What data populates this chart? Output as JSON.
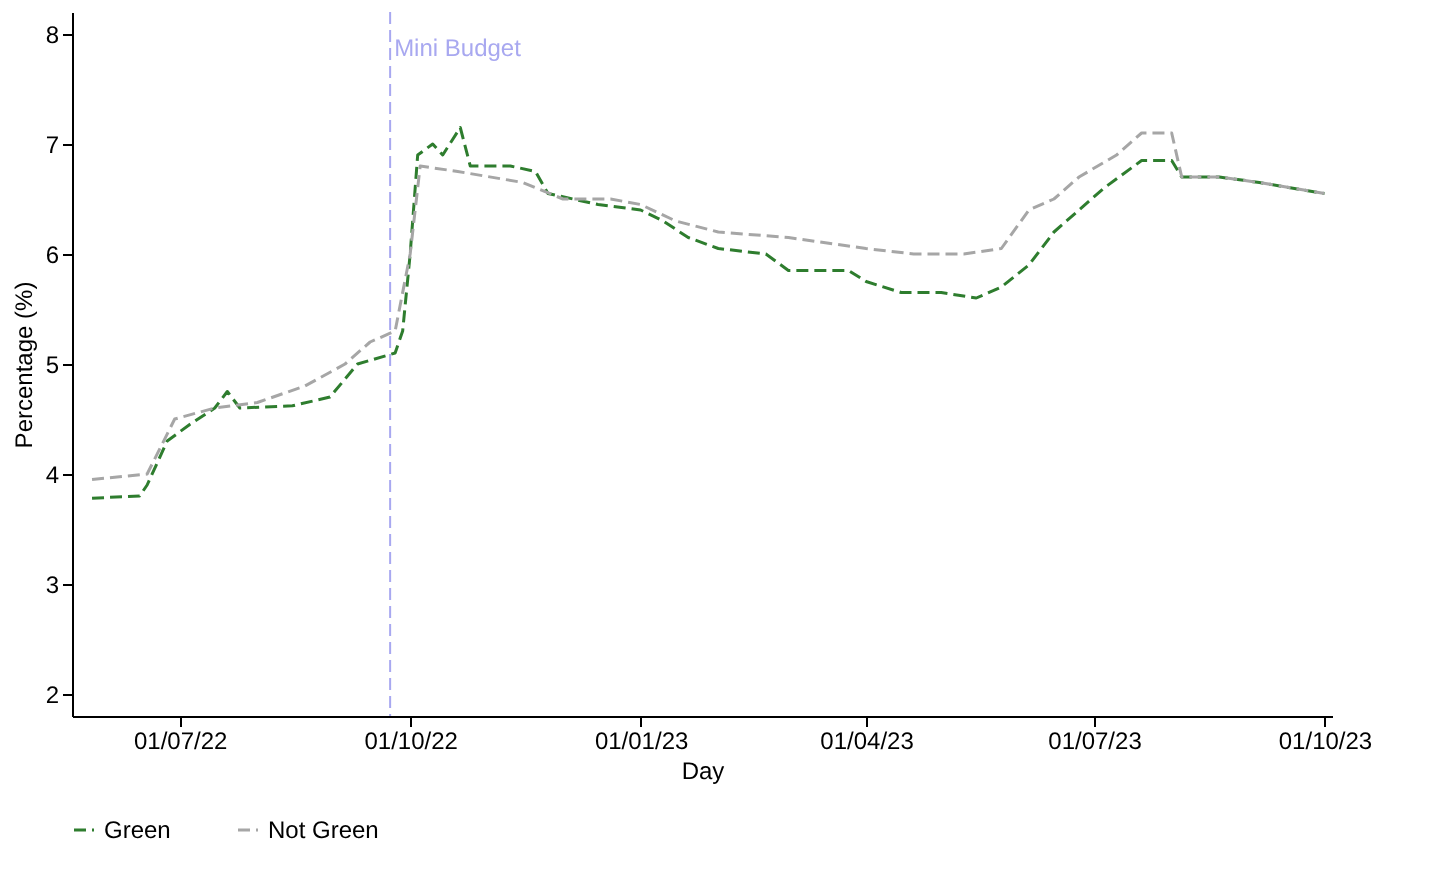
{
  "chart_data": {
    "type": "line",
    "xlabel": "Day",
    "ylabel": "Percentage (%)",
    "xlim": [
      "2022-05-19",
      "2023-10-04"
    ],
    "xticks": [
      {
        "value": "2022-07-01",
        "label": "01/07/22"
      },
      {
        "value": "2022-10-01",
        "label": "01/10/22"
      },
      {
        "value": "2023-01-01",
        "label": "01/01/23"
      },
      {
        "value": "2023-04-01",
        "label": "01/04/23"
      },
      {
        "value": "2023-07-01",
        "label": "01/07/23"
      },
      {
        "value": "2023-10-01",
        "label": "01/10/23"
      }
    ],
    "ylim": [
      1.8,
      8.2
    ],
    "yticks": [
      2,
      3,
      4,
      5,
      6,
      7,
      8
    ],
    "grid": false,
    "legend": "bottom",
    "line_style": "dashed",
    "marker": "none",
    "ref_lines": [
      {
        "axis": "x",
        "value": "2022-09-23",
        "label": "Mini Budget",
        "color": "#a8a8f0",
        "line_style": "dashed"
      }
    ],
    "series": [
      {
        "name": "Green",
        "color": "#2e7d2e",
        "x": [
          "2022-05-27",
          "2022-06-15",
          "2022-06-18",
          "2022-06-26",
          "2022-07-05",
          "2022-07-15",
          "2022-07-20",
          "2022-07-25",
          "2022-08-15",
          "2022-08-30",
          "2022-09-10",
          "2022-09-25",
          "2022-09-28",
          "2022-10-01",
          "2022-10-04",
          "2022-10-10",
          "2022-10-14",
          "2022-10-21",
          "2022-10-25",
          "2022-11-10",
          "2022-11-20",
          "2022-11-25",
          "2022-12-15",
          "2023-01-01",
          "2023-01-10",
          "2023-01-20",
          "2023-02-01",
          "2023-02-20",
          "2023-03-01",
          "2023-03-25",
          "2023-04-01",
          "2023-04-15",
          "2023-05-01",
          "2023-05-15",
          "2023-05-25",
          "2023-06-05",
          "2023-06-15",
          "2023-06-25",
          "2023-07-05",
          "2023-07-20",
          "2023-08-01",
          "2023-08-05",
          "2023-08-20",
          "2023-09-05",
          "2023-10-01"
        ],
        "values": [
          3.78,
          3.8,
          3.9,
          4.3,
          4.45,
          4.6,
          4.75,
          4.6,
          4.62,
          4.7,
          5.0,
          5.1,
          5.3,
          6.0,
          6.9,
          7.0,
          6.9,
          7.15,
          6.8,
          6.8,
          6.75,
          6.55,
          6.45,
          6.4,
          6.3,
          6.15,
          6.05,
          6.0,
          5.85,
          5.85,
          5.75,
          5.65,
          5.65,
          5.6,
          5.7,
          5.9,
          6.2,
          6.4,
          6.6,
          6.85,
          6.85,
          6.7,
          6.7,
          6.65,
          6.55
        ]
      },
      {
        "name": "Not Green",
        "color": "#a6a6a6",
        "x": [
          "2022-05-27",
          "2022-06-18",
          "2022-06-29",
          "2022-07-15",
          "2022-08-01",
          "2022-08-20",
          "2022-09-05",
          "2022-09-15",
          "2022-09-25",
          "2022-10-01",
          "2022-10-05",
          "2022-10-20",
          "2022-11-15",
          "2022-12-01",
          "2022-12-20",
          "2023-01-01",
          "2023-01-15",
          "2023-02-01",
          "2023-03-01",
          "2023-04-01",
          "2023-04-20",
          "2023-05-10",
          "2023-05-25",
          "2023-06-05",
          "2023-06-15",
          "2023-06-25",
          "2023-07-10",
          "2023-07-20",
          "2023-08-01",
          "2023-08-05",
          "2023-08-20",
          "2023-09-05",
          "2023-10-01"
        ],
        "values": [
          3.95,
          4.0,
          4.5,
          4.6,
          4.65,
          4.8,
          5.0,
          5.2,
          5.3,
          6.0,
          6.8,
          6.75,
          6.65,
          6.5,
          6.5,
          6.45,
          6.3,
          6.2,
          6.15,
          6.05,
          6.0,
          6.0,
          6.05,
          6.4,
          6.5,
          6.7,
          6.9,
          7.1,
          7.1,
          6.7,
          6.7,
          6.65,
          6.55
        ]
      }
    ]
  }
}
